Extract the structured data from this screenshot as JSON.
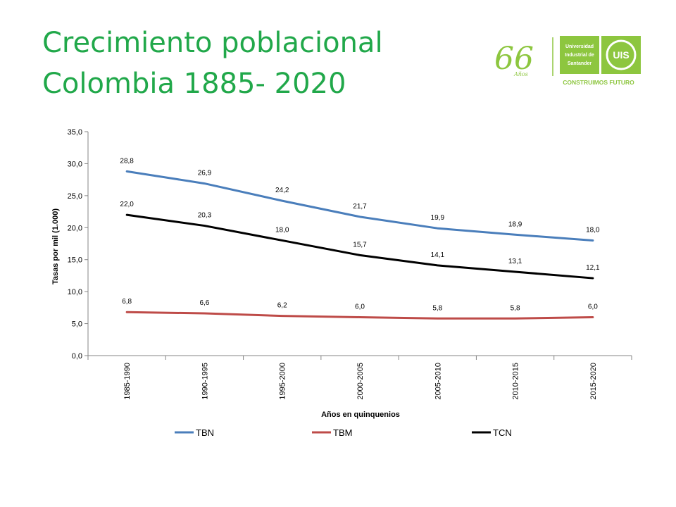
{
  "slide": {
    "title_line1": "Crecimiento poblacional",
    "title_line2": "Colombia 1885- 2020"
  },
  "logo": {
    "anniversary": "66",
    "anniversary_sub": "Años",
    "university": [
      "Universidad",
      "Industrial de",
      "Santander"
    ],
    "mark": "UIS",
    "slogan": "CONSTRUIMOS FUTURO",
    "color": "#8dc63f"
  },
  "chart_data": {
    "type": "line",
    "categories": [
      "1985-1990",
      "1990-1995",
      "1995-2000",
      "2000-2005",
      "2005-2010",
      "2010-2015",
      "2015-2020"
    ],
    "series": [
      {
        "name": "TBN",
        "color": "#4a7ebb",
        "values": [
          28.8,
          26.9,
          24.2,
          21.7,
          19.9,
          18.9,
          18.0
        ],
        "labels": [
          "28,8",
          "26,9",
          "24,2",
          "21,7",
          "19,9",
          "18,9",
          "18,0"
        ]
      },
      {
        "name": "TBM",
        "color": "#be4b48",
        "values": [
          6.8,
          6.6,
          6.2,
          6.0,
          5.8,
          5.8,
          6.0
        ],
        "labels": [
          "6,8",
          "6,6",
          "6,2",
          "6,0",
          "5,8",
          "5,8",
          "6,0"
        ]
      },
      {
        "name": "TCN",
        "color": "#000000",
        "values": [
          22.0,
          20.3,
          18.0,
          15.7,
          14.1,
          13.1,
          12.1
        ],
        "labels": [
          "22,0",
          "20,3",
          "18,0",
          "15,7",
          "14,1",
          "13,1",
          "12,1"
        ]
      }
    ],
    "ylim": [
      0,
      35
    ],
    "yticks": [
      "0,0",
      "5,0",
      "10,0",
      "15,0",
      "20,0",
      "25,0",
      "30,0",
      "35,0"
    ],
    "xlabel": "Años en quinquenios",
    "ylabel": "Tasas por mil (1.000)",
    "grid": false,
    "legend_position": "bottom"
  }
}
